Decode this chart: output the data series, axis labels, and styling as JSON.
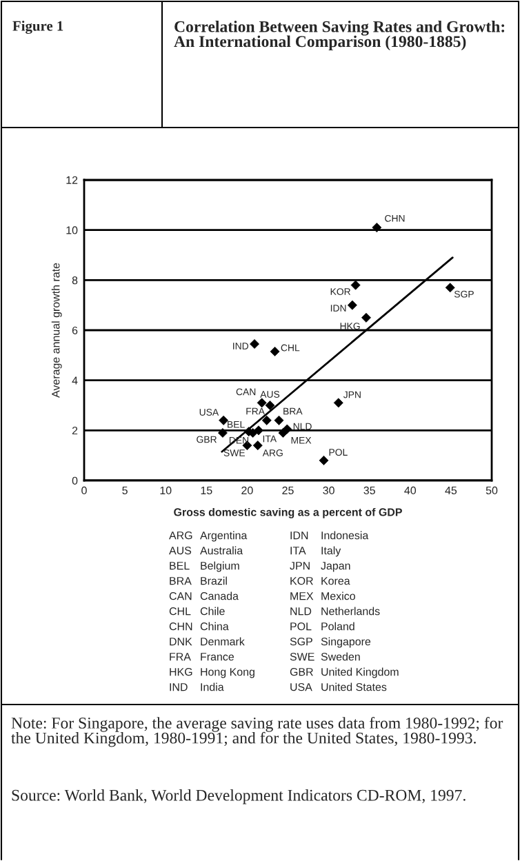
{
  "chart_data": {
    "type": "scatter",
    "title": "Correlation Between Saving Rates and Growth: An International Comparison (1980-1885)",
    "xlabel": "Gross domestic saving as a percent of GDP",
    "ylabel": "Average annual growth rate",
    "series": [
      {
        "color": "#000000",
        "marker": "diamond",
        "x": [
          35.9,
          33.3,
          44.9,
          32.9,
          34.6,
          20.9,
          23.4,
          21.8,
          22.8,
          31.2,
          17.1,
          22.4,
          23.9,
          20.2,
          24.9,
          17.0,
          21.4,
          24.4,
          20.0,
          21.3,
          20.7,
          29.4
        ],
        "values": [
          10.1,
          7.8,
          7.7,
          7.0,
          6.5,
          5.45,
          5.15,
          3.1,
          3.0,
          3.1,
          2.4,
          2.4,
          2.4,
          1.95,
          2.05,
          1.9,
          2.0,
          1.9,
          1.4,
          1.4,
          1.9,
          0.8
        ],
        "value_labels": [
          "CHN",
          "KOR",
          "SGP",
          "IDN",
          "HKG",
          "IND",
          "CHL",
          "CAN",
          "AUS",
          "JPN",
          "USA",
          "FRA",
          "BRA",
          "BEL",
          "NLD",
          "GBR",
          "ITA",
          "MEX",
          "SWE",
          "ARG",
          "DEN",
          "POL"
        ]
      },
      {
        "type": "line",
        "color": "#000000",
        "line_style": "solid",
        "x": [
          16.9,
          45.2
        ],
        "values": [
          1.15,
          8.9
        ]
      }
    ],
    "xlim": [
      0,
      50
    ],
    "xticks": [
      0,
      5,
      10,
      15,
      20,
      25,
      30,
      35,
      40,
      45,
      50
    ],
    "ylim": [
      0,
      12
    ],
    "yticks": [
      0,
      2,
      4,
      6,
      8,
      10,
      12
    ],
    "grid": "y",
    "legend": false,
    "annotations": [
      "Figure 1",
      "ARG Argentina",
      "AUS Australia",
      "BEL Belgium",
      "BRA Brazil",
      "CAN Canada",
      "CHL Chile",
      "CHN China",
      "DNK Denmark",
      "FRA France",
      "HKG Hong Kong",
      "IND India",
      "IDN Indonesia",
      "ITA Italy",
      "JPN Japan",
      "KOR Korea",
      "MEX Mexico",
      "NLD Netherlands",
      "POL Poland",
      "SGP Singapore",
      "SWE Sweden",
      "GBR United Kingdom",
      "USA United States",
      "Note: For Singapore, the average saving rate uses data from 1980-1992; for the United Kingdom, 1980-1991; and for the United States, 1980-1993.",
      "Source: World Bank, World Development Indicators CD-ROM, 1997."
    ]
  }
}
